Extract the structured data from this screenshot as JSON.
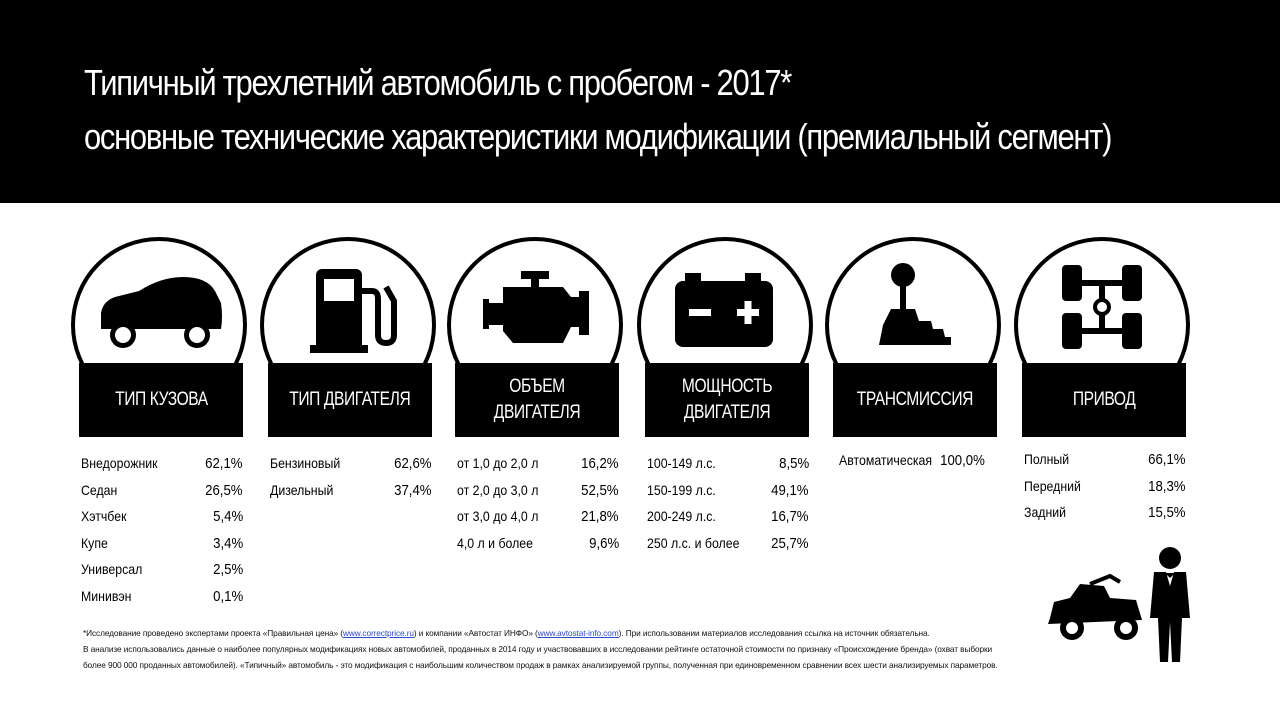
{
  "header": {
    "title_line1": "Типичный трехлетний автомобиль с пробегом - 2017*",
    "title_line2": "основные технические характеристики модификации (премиальный сегмент)"
  },
  "colors": {
    "background": "#ffffff",
    "header_bg": "#000000",
    "text": "#000000",
    "link": "#2a4bcc"
  },
  "columns": [
    {
      "icon": "car-icon",
      "label": "ТИП КУЗОВА",
      "rows": [
        {
          "name": "Внедорожник",
          "value": "62,1%"
        },
        {
          "name": "Седан",
          "value": "26,5%"
        },
        {
          "name": "Хэтчбек",
          "value": "5,4%"
        },
        {
          "name": "Купе",
          "value": "3,4%"
        },
        {
          "name": "Универсал",
          "value": "2,5%"
        },
        {
          "name": "Минивэн",
          "value": "0,1%"
        }
      ]
    },
    {
      "icon": "fuel-pump-icon",
      "label": "ТИП ДВИГАТЕЛЯ",
      "rows": [
        {
          "name": "Бензиновый",
          "value": "62,6%"
        },
        {
          "name": "Дизельный",
          "value": "37,4%"
        }
      ]
    },
    {
      "icon": "engine-icon",
      "label": "ОБЪЕМ ДВИГАТЕЛЯ",
      "rows": [
        {
          "name": "от 1,0 до 2,0 л",
          "value": "16,2%"
        },
        {
          "name": "от 2,0 до 3,0 л",
          "value": "52,5%"
        },
        {
          "name": "от 3,0 до 4,0 л",
          "value": "21,8%"
        },
        {
          "name": "4,0 л и более",
          "value": "9,6%"
        }
      ]
    },
    {
      "icon": "battery-icon",
      "label": "МОЩНОСТЬ\nДВИГАТЕЛЯ",
      "rows": [
        {
          "name": "100-149 л.с.",
          "value": "8,5%"
        },
        {
          "name": "150-199 л.с.",
          "value": "49,1%"
        },
        {
          "name": "200-249 л.с.",
          "value": "16,7%"
        },
        {
          "name": "250 л.с. и более",
          "value": "25,7%"
        }
      ]
    },
    {
      "icon": "gear-shift-icon",
      "label": "ТРАНСМИССИЯ",
      "rows": [
        {
          "name": "Автоматическая",
          "value": "100,0%"
        }
      ]
    },
    {
      "icon": "drivetrain-icon",
      "label": "ПРИВОД",
      "rows": [
        {
          "name": "Полный",
          "value": "66,1%"
        },
        {
          "name": "Передний",
          "value": "18,3%"
        },
        {
          "name": "Задний",
          "value": "15,5%"
        }
      ]
    }
  ],
  "footnote": {
    "line1_a": "*Исследование проведено экспертами проекта «Правильная цена» (",
    "link1": "www.correctprice.ru",
    "line1_b": ") и компании «Автостат ИНФО» (",
    "link2": "www.avtostat-info.com",
    "line1_c": "). При использовании материалов исследования ссылка на источник обязательна.",
    "line2": "В анализе использовались данные о наиболее популярных модификациях новых автомобилей, проданных в 2014 году и участвовавших в исследовании рейтинге остаточной стоимости по признаку «Происхождение бренда» (охват выборки",
    "line3": "более 900 000 проданных автомобилей). «Типичный» автомобиль - это модификация с наибольшим количеством продаж в рамках анализируемой группы, полученная при единовременном сравнении всех шести анализируемых параметров."
  },
  "decoration": {
    "icon": "valet-with-car-icon"
  }
}
